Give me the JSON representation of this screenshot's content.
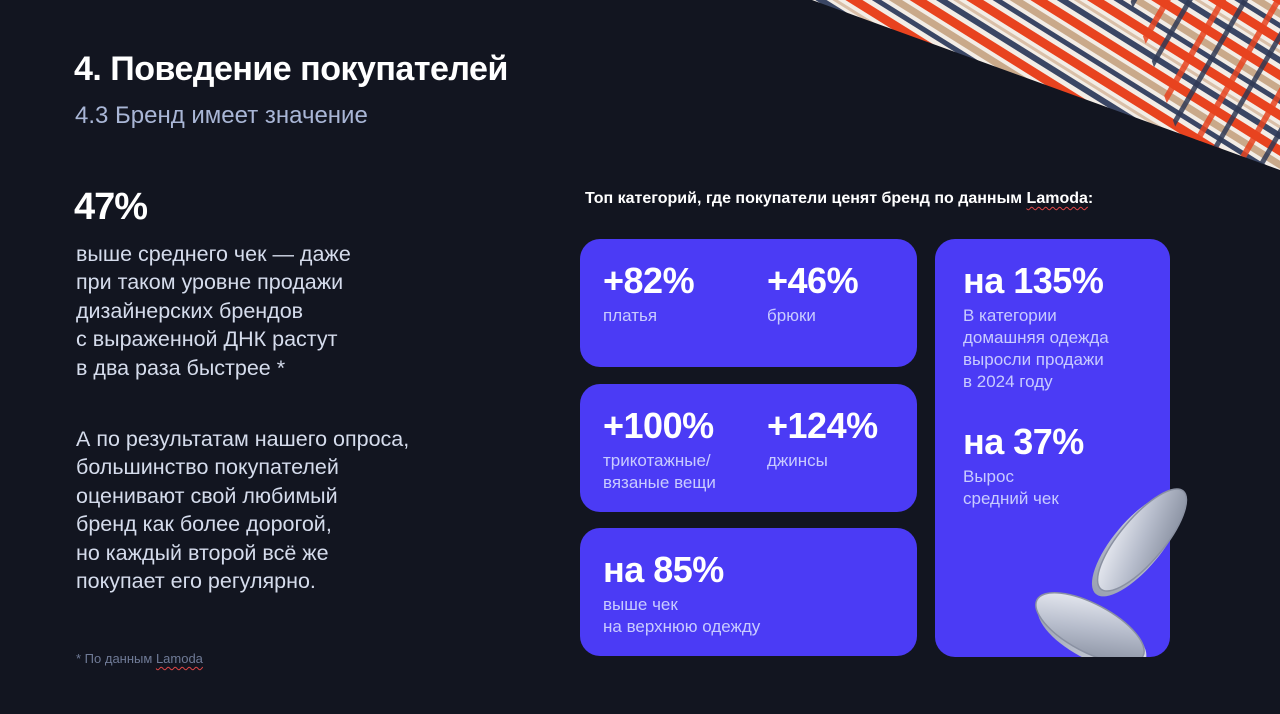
{
  "header": {
    "title": "4. Поведение покупателей",
    "subtitle": "4.3 Бренд имеет значение"
  },
  "left": {
    "stat": "47%",
    "paragraph1": "выше среднего чек — даже\nпри таком уровне продажи\nдизайнерских брендов\nс выраженной ДНК растут\nв два раза быстрее *",
    "paragraph2": "А по результатам нашего опроса,\nбольшинство покупателей\nоценивают свой любимый\nбренд как более дорогой,\nно каждый второй всё же\nпокупает его регулярно.",
    "footnote_prefix": "* По данным ",
    "footnote_brand": "Lamoda"
  },
  "right": {
    "heading_prefix": "Топ категорий, где покупатели ценят бренд по данным ",
    "heading_brand": "Lamoda",
    "heading_suffix": ":",
    "cards": {
      "dresses": {
        "value": "+82%",
        "label": "платья"
      },
      "trousers": {
        "value": "+46%",
        "label": "брюки"
      },
      "knitwear": {
        "value": "+100%",
        "label": "трикотажные/\nвязаные вещи"
      },
      "jeans": {
        "value": "+124%",
        "label": "джинсы"
      },
      "outerwear": {
        "value": "на 85%",
        "label": "выше чек\nна верхнюю одежду"
      },
      "homewear": {
        "value": "на 135%",
        "label": "В категории\nдомашняя одежда\nвыросли продажи\nв 2024 году"
      },
      "avg_check": {
        "value": "на 37%",
        "label": "Вырос\nсредний чек"
      }
    }
  },
  "colors": {
    "background": "#121520",
    "card": "#4b3bf5",
    "subtitle": "#a9b6d6",
    "stripe_red": "#e8431f",
    "stripe_navy": "#3a4664",
    "stripe_beige": "#c9a98a"
  },
  "icons": [
    "striped-fabric-decoration",
    "coin-icon"
  ]
}
